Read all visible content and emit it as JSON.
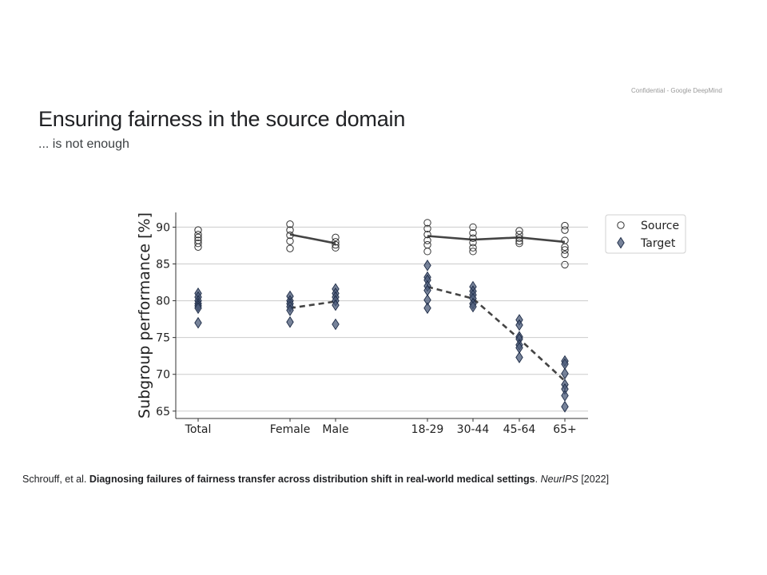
{
  "header": {
    "confidential": "Confidential - Google DeepMind",
    "title": "Ensuring fairness in the source domain",
    "subtitle": "... is not enough"
  },
  "citation": {
    "authors": "Schrouff, et al.",
    "paper_title": "Diagnosing failures of fairness transfer across distribution shift in real-world medical settings",
    "venue": "NeurIPS",
    "year": "[2022]"
  },
  "colors": {
    "source_edge": "#333333",
    "target_fill": "#4a5a78",
    "target_edge": "#1c2a45",
    "line": "#444444",
    "grid": "#cccccc"
  },
  "chart_data": {
    "type": "scatter",
    "ylabel": "Subgroup performance [%]",
    "xlabel": "",
    "ylim": [
      64,
      92
    ],
    "yticks": [
      65,
      70,
      75,
      80,
      85,
      90
    ],
    "grid": true,
    "legend_position": "top-right (outside)",
    "categories": [
      "Total",
      "Female",
      "Male",
      "18-29",
      "30-44",
      "45-64",
      "65+"
    ],
    "series": [
      {
        "name": "Source",
        "marker": "circle-open",
        "points": [
          [
            89.6,
            89.0,
            88.6,
            88.2,
            87.8,
            87.3
          ],
          [
            90.4,
            89.6,
            88.9,
            88.1,
            87.1
          ],
          [
            88.6,
            88.0,
            87.6,
            87.2
          ],
          [
            90.6,
            89.8,
            89.0,
            88.2,
            87.6,
            86.7
          ],
          [
            90.0,
            89.2,
            88.5,
            87.9,
            87.2,
            86.7
          ],
          [
            89.5,
            89.0,
            88.5,
            88.1,
            87.8
          ],
          [
            90.2,
            89.6,
            88.2,
            87.3,
            86.9,
            86.3,
            84.9
          ]
        ],
        "line_values": [
          null,
          89.0,
          87.8,
          88.8,
          88.3,
          88.6,
          88.0
        ],
        "line_style": "solid"
      },
      {
        "name": "Target",
        "marker": "diamond-filled",
        "points": [
          [
            81.0,
            80.5,
            80.0,
            79.6,
            79.3,
            79.0,
            77.0
          ],
          [
            80.6,
            80.0,
            79.6,
            79.2,
            78.7,
            77.1
          ],
          [
            81.6,
            81.0,
            80.5,
            80.0,
            79.4,
            76.8
          ],
          [
            84.8,
            83.2,
            82.8,
            82.0,
            81.4,
            80.1,
            79.0
          ],
          [
            81.9,
            81.3,
            80.8,
            80.3,
            79.6,
            79.2
          ],
          [
            77.4,
            76.7,
            75.1,
            74.8,
            74.0,
            73.6,
            72.3
          ],
          [
            71.8,
            71.4,
            70.1,
            68.6,
            68.0,
            67.1,
            65.6
          ]
        ],
        "line_values": [
          null,
          79.0,
          79.9,
          81.9,
          80.3,
          74.8,
          69.1
        ],
        "line_style": "dashed"
      }
    ]
  }
}
